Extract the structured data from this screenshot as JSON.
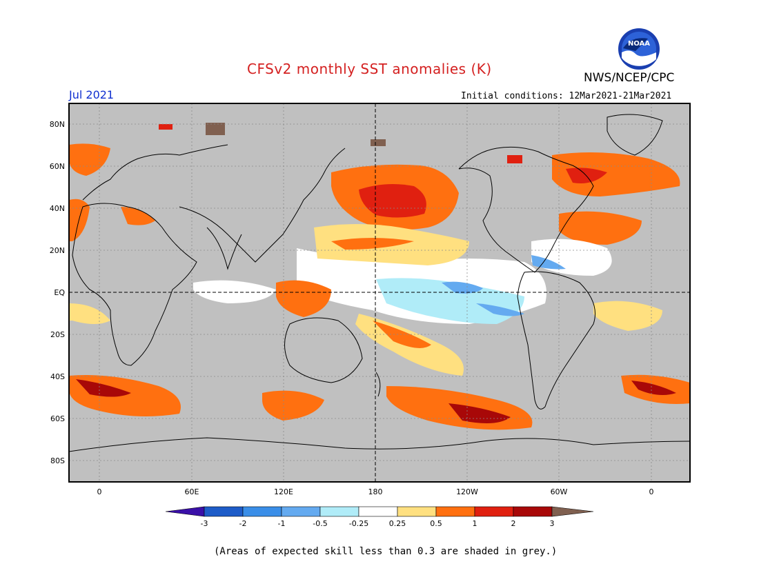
{
  "header": {
    "title": "CFSv2 monthly SST anomalies (K)",
    "agency": "NWS/NCEP/CPC",
    "logo_text": "NOAA",
    "month": "Jul 2021",
    "initial_conditions": "Initial conditions: 12Mar2021-21Mar2021"
  },
  "map": {
    "lat_labels": [
      "80N",
      "60N",
      "40N",
      "20N",
      "EQ",
      "20S",
      "40S",
      "60S",
      "80S"
    ],
    "lon_labels": [
      "0",
      "60E",
      "120E",
      "180",
      "120W",
      "60W",
      "0"
    ],
    "skill_mask_color": "#c0c0c0",
    "ocean_neutral_color": "#ffffff"
  },
  "colorbar": {
    "ticks": [
      "-3",
      "-2",
      "-1",
      "-0.5",
      "-0.25",
      "0.25",
      "0.5",
      "1",
      "2",
      "3"
    ],
    "colors": [
      "#3a10a8",
      "#1e5cc8",
      "#3a8ee8",
      "#64aaf0",
      "#b0ecf8",
      "#ffffff",
      "#ffe080",
      "#ff7010",
      "#e02010",
      "#a80808",
      "#806050"
    ]
  },
  "footnote": "(Areas of expected skill less than 0.3 are shaded in grey.)"
}
